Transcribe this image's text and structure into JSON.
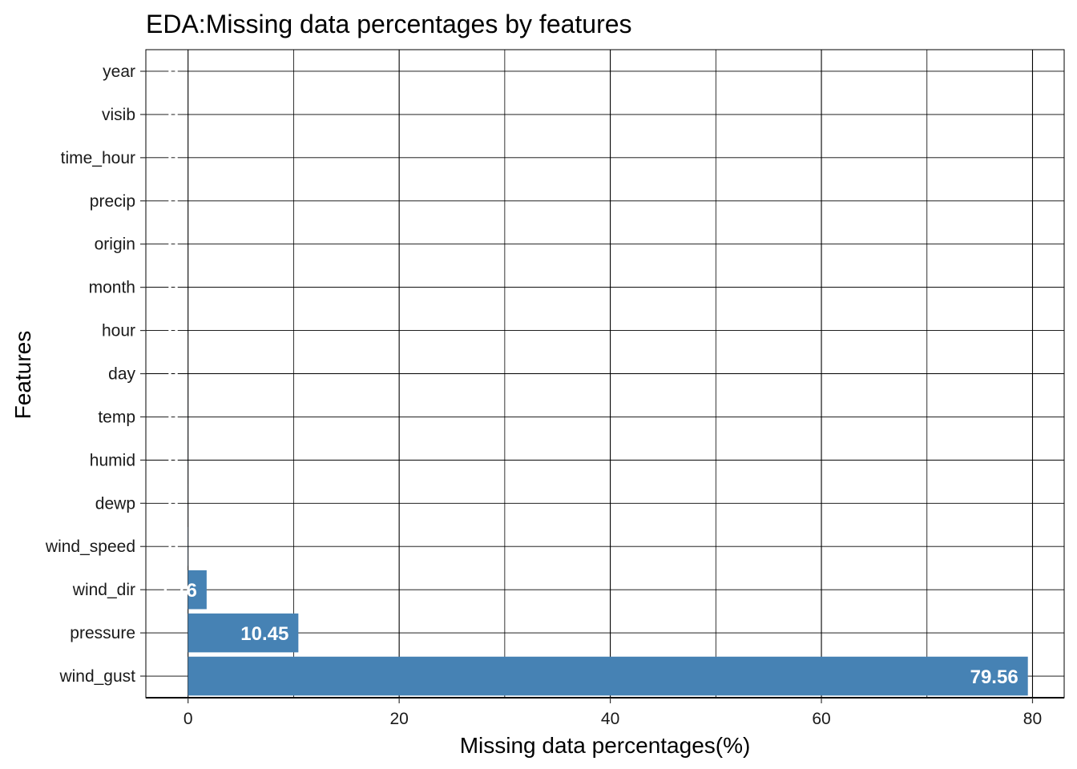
{
  "chart_data": {
    "type": "bar",
    "orientation": "horizontal",
    "title": "EDA:Missing data percentages by features",
    "xlabel": "Missing data percentages(%)",
    "ylabel": "Features",
    "categories": [
      "year",
      "visib",
      "time_hour",
      "precip",
      "origin",
      "month",
      "hour",
      "day",
      "temp",
      "humid",
      "dewp",
      "wind_speed",
      "wind_dir",
      "pressure",
      "wind_gust"
    ],
    "values": [
      0,
      0,
      0,
      0,
      0,
      0,
      0,
      0,
      0.002,
      0.002,
      0.002,
      0.012,
      1.76,
      10.45,
      79.56
    ],
    "data_labels": [
      "0",
      "0",
      "0",
      "0",
      "0",
      "0",
      "0",
      "0",
      "0",
      "0",
      "0",
      "0",
      "1.76",
      "10.45",
      "79.56"
    ],
    "xlim": [
      -4,
      83
    ],
    "xticks": [
      0,
      20,
      40,
      60,
      80
    ],
    "bar_color": "#4682B4",
    "label_color": "#FFFFFF",
    "grid": true,
    "legend": "none"
  }
}
